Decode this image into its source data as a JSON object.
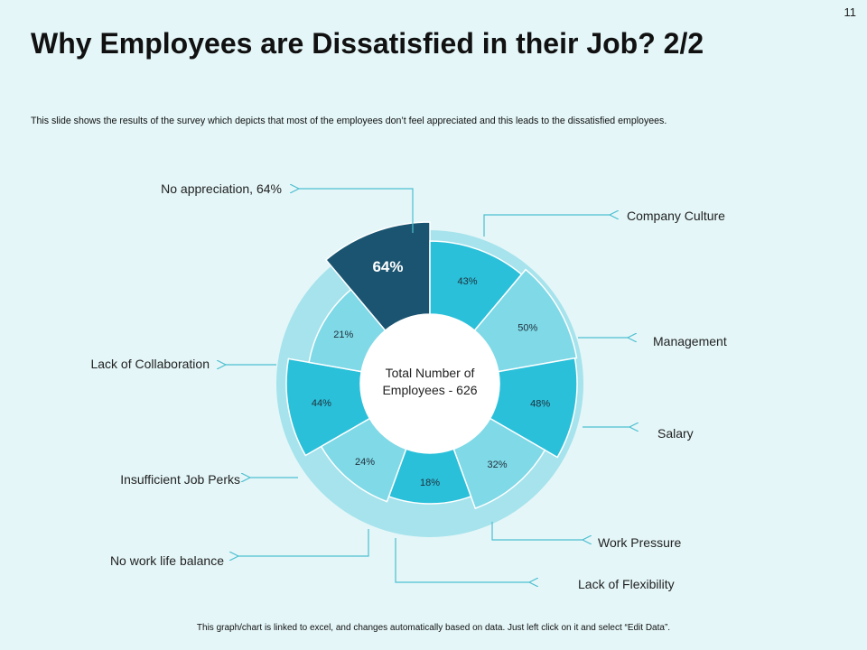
{
  "slide_number": "11",
  "title": "Why Employees are Dissatisfied in their Job? 2/2",
  "subtitle": "This slide shows the results of the survey which depicts that most of the employees don’t feel appreciated  and this leads to the dissatisfied employees.",
  "footer": "This graph/chart is linked to excel, and changes automatically based on data. Just left click on it and select “Edit Data”.",
  "colors": {
    "background": "#e4f6f8",
    "dark": "#1a5470",
    "mid": "#2ac0da",
    "light": "#7fd9e7",
    "ring": "#a6e3ec",
    "leader": "#4cbfd0"
  },
  "chart_data": {
    "type": "pie",
    "style": "donut",
    "center_label_line1": "Total Number of",
    "center_label_line2": "Employees - 626",
    "series": [
      {
        "name": "No appreciation",
        "value": 64,
        "label": "64%",
        "callout": "No appreciation, 64%",
        "color": "dark"
      },
      {
        "name": "Company Culture",
        "value": 43,
        "label": "43%",
        "callout": "Company Culture",
        "color": "mid"
      },
      {
        "name": "Management",
        "value": 50,
        "label": "50%",
        "callout": "Management",
        "color": "light"
      },
      {
        "name": "Salary",
        "value": 48,
        "label": "48%",
        "callout": "Salary",
        "color": "mid"
      },
      {
        "name": "Work Pressure",
        "value": 32,
        "label": "32%",
        "callout": "Work Pressure",
        "color": "light"
      },
      {
        "name": "Lack of Flexibility",
        "value": 18,
        "label": "18%",
        "callout": "Lack of Flexibility",
        "color": "mid"
      },
      {
        "name": "No work life balance",
        "value": 24,
        "label": "24%",
        "callout": "No work life balance",
        "color": "light"
      },
      {
        "name": "Insufficient Job Perks",
        "value": 44,
        "label": "44%",
        "callout": "Insufficient  Job Perks",
        "color": "mid"
      },
      {
        "name": "Lack of Collaboration",
        "value": 21,
        "label": "21%",
        "callout": "Lack of Collaboration",
        "color": "light"
      }
    ]
  }
}
